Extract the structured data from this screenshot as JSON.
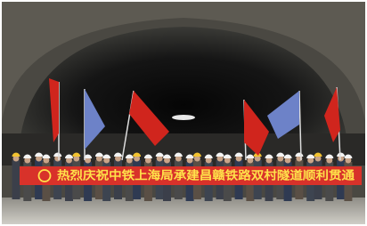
{
  "banner": {
    "text": "热烈庆祝中铁上海局承建昌赣铁路双村隧道顺利贯通"
  }
}
